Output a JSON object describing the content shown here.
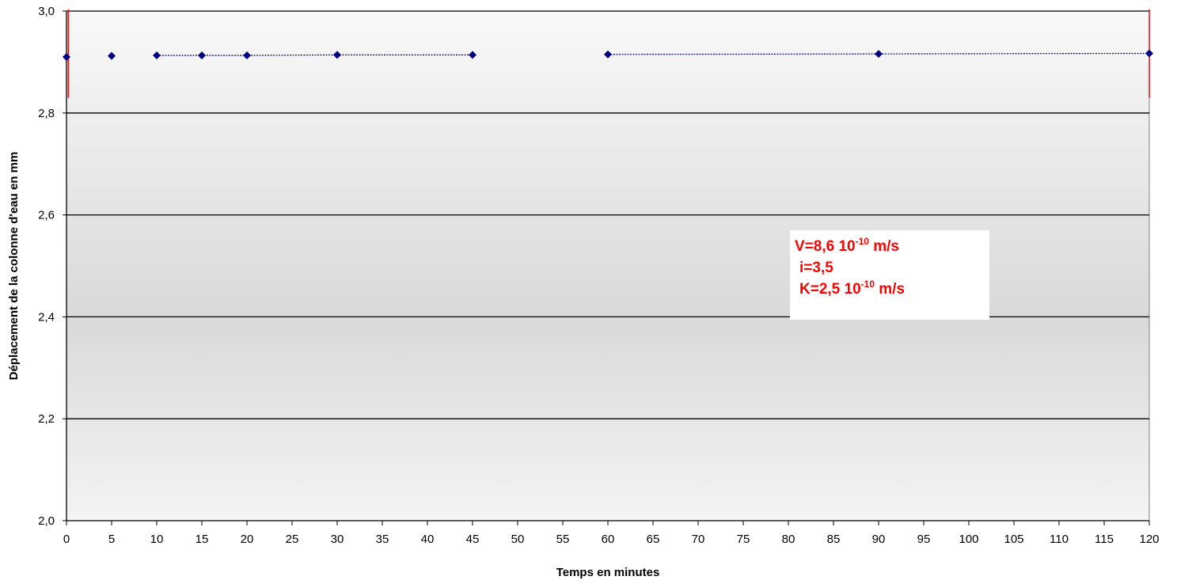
{
  "chart_data": {
    "type": "scatter",
    "xlabel": "Temps en minutes",
    "ylabel": "Déplacement de la colonne d'eau en mm",
    "xlim": [
      0,
      120
    ],
    "ylim": [
      2.0,
      3.0
    ],
    "x_ticks": [
      "0",
      "5",
      "10",
      "15",
      "20",
      "25",
      "30",
      "35",
      "40",
      "45",
      "50",
      "55",
      "60",
      "65",
      "70",
      "75",
      "80",
      "85",
      "90",
      "95",
      "100",
      "105",
      "110",
      "115",
      "120"
    ],
    "y_ticks": [
      "2,0",
      "2,2",
      "2,4",
      "2,6",
      "2,8",
      "3,0"
    ],
    "grid": "horizontal",
    "series": [
      {
        "x": [
          0,
          5,
          10,
          15,
          20,
          30,
          45,
          60,
          90,
          120
        ],
        "y": [
          2.91,
          2.912,
          2.913,
          2.913,
          2.913,
          2.914,
          2.914,
          2.915,
          2.916,
          2.917
        ],
        "color": "#000080"
      }
    ],
    "connected_segments": [
      [
        10,
        45
      ],
      [
        60,
        120
      ]
    ],
    "vertical_markers": [
      0.2,
      120
    ],
    "marker_color": "#ff0000",
    "annotation": {
      "line1": "V=8,6 10",
      "line1_exp": "-10",
      "line1_unit": " m/s",
      "line2": "i=3,5",
      "line3": "K=2,5 10",
      "line3_exp": "-10",
      "line3_unit": " m/s",
      "color": "#ff0000"
    }
  }
}
